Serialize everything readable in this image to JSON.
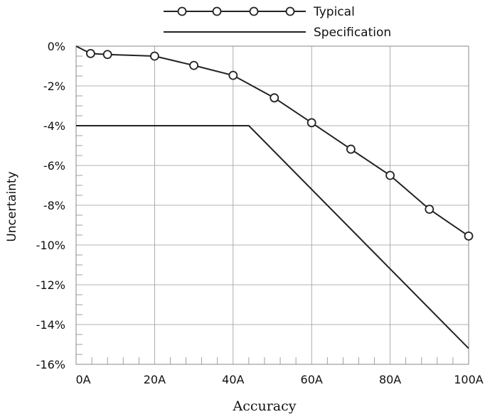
{
  "chart_data": {
    "type": "line",
    "xlabel": "Accuracy",
    "ylabel": "Uncertainty",
    "xlim": [
      0,
      100
    ],
    "ylim": [
      -16,
      0
    ],
    "x_ticks": [
      0,
      20,
      40,
      60,
      80,
      100
    ],
    "x_tick_labels": [
      "0A",
      "20A",
      "40A",
      "60A",
      "80A",
      "100A"
    ],
    "y_ticks": [
      0,
      -2,
      -4,
      -6,
      -8,
      -10,
      -12,
      -14,
      -16
    ],
    "y_tick_labels": [
      "0%",
      "-2%",
      "-4%",
      "-6%",
      "-8%",
      "-10%",
      "-12%",
      "-14%",
      "-16%"
    ],
    "grid": true,
    "legend_position": "top",
    "series": [
      {
        "name": "Typical",
        "marker": "circle",
        "x": [
          0,
          3.7,
          8,
          20,
          30,
          40,
          50.5,
          60,
          70,
          80,
          90,
          100
        ],
        "y": [
          0,
          -0.37,
          -0.42,
          -0.5,
          -0.97,
          -1.47,
          -2.6,
          -3.85,
          -5.18,
          -6.5,
          -8.2,
          -9.55
        ],
        "marker_shown": [
          false,
          true,
          true,
          true,
          true,
          true,
          true,
          true,
          true,
          true,
          true,
          true
        ]
      },
      {
        "name": "Specification",
        "marker": "none",
        "x": [
          0,
          44,
          100
        ],
        "y": [
          -4,
          -4,
          -15.2
        ]
      }
    ],
    "colors": {
      "line": "#222222",
      "grid": "#9a9a9a",
      "frame": "#888888"
    }
  }
}
